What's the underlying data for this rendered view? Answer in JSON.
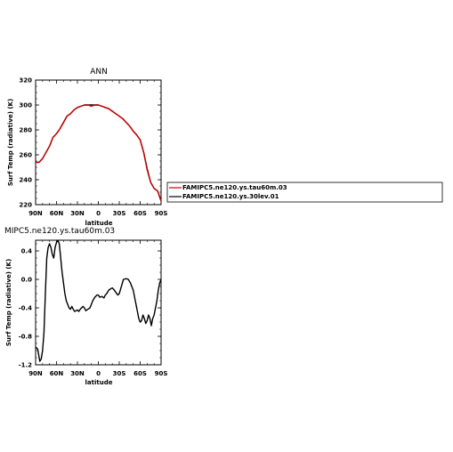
{
  "chart_data": [
    {
      "type": "line",
      "title": "ANN",
      "xlabel": "latitude",
      "ylabel": "Surf Temp (radiative) (K)",
      "x_ticks": [
        "90N",
        "60N",
        "30N",
        "0",
        "30S",
        "60S",
        "90S"
      ],
      "y_ticks": [
        "220",
        "240",
        "260",
        "280",
        "300",
        "320"
      ],
      "xlim": [
        90,
        -90
      ],
      "ylim": [
        220,
        320
      ],
      "series": [
        {
          "name": "FAMIPC5.ne120.ys.tau60m.03",
          "color": "#cc0000",
          "x": [
            90,
            85,
            80,
            75,
            70,
            65,
            60,
            55,
            50,
            45,
            40,
            35,
            30,
            25,
            20,
            15,
            10,
            5,
            0,
            -5,
            -10,
            -15,
            -20,
            -25,
            -30,
            -35,
            -40,
            -45,
            -50,
            -55,
            -60,
            -65,
            -70,
            -75,
            -80,
            -85,
            -90
          ],
          "values": [
            254,
            254,
            257,
            262,
            267,
            274,
            277,
            281,
            286,
            291,
            293,
            296,
            298,
            299,
            300,
            300,
            299,
            300,
            300,
            299,
            298,
            297,
            295,
            293,
            291,
            289,
            286,
            283,
            279,
            276,
            272,
            262,
            248,
            238,
            233,
            231,
            223
          ]
        },
        {
          "name": "FAMIPC5.ne120.ys.30lev.01",
          "color": "#000000",
          "x": [
            90,
            85,
            80,
            75,
            70,
            65,
            60,
            55,
            50,
            45,
            40,
            35,
            30,
            25,
            20,
            15,
            10,
            5,
            0,
            -5,
            -10,
            -15,
            -20,
            -25,
            -30,
            -35,
            -40,
            -45,
            -50,
            -55,
            -60,
            -65,
            -70,
            -75,
            -80,
            -85,
            -90
          ],
          "values": [
            254,
            254,
            257,
            262,
            267,
            274,
            277,
            281,
            286,
            291,
            293,
            296,
            298,
            299,
            300,
            300,
            300,
            300,
            300,
            299,
            298,
            297,
            295,
            293,
            291,
            289,
            286,
            283,
            279,
            276,
            272,
            262,
            249,
            238,
            233,
            231,
            223
          ]
        }
      ],
      "legend": {
        "placement": "right",
        "entries": [
          "FAMIPC5.ne120.ys.tau60m.03",
          "FAMIPC5.ne120.ys.30lev.01"
        ]
      }
    },
    {
      "type": "line",
      "title": "MIPC5.ne120.ys.tau60m.03",
      "xlabel": "latitude",
      "ylabel": "Surf Temp (radiative) (K)",
      "x_ticks": [
        "90N",
        "60N",
        "30N",
        "0",
        "30S",
        "60S",
        "90S"
      ],
      "y_ticks": [
        "-1.2",
        "-0.8",
        "-0.4",
        "0.0",
        "0.4"
      ],
      "xlim": [
        90,
        -90
      ],
      "ylim": [
        -1.2,
        0.55
      ],
      "series": [
        {
          "name": "",
          "color": "#000000",
          "x": [
            90,
            87,
            84,
            82,
            80,
            78,
            76,
            74,
            72,
            70,
            68,
            66,
            64,
            62,
            60,
            58,
            56,
            54,
            52,
            50,
            48,
            46,
            44,
            42,
            40,
            38,
            36,
            34,
            32,
            30,
            28,
            26,
            24,
            22,
            20,
            18,
            15,
            12,
            10,
            8,
            5,
            2,
            0,
            -2,
            -5,
            -8,
            -10,
            -12,
            -15,
            -18,
            -20,
            -22,
            -25,
            -28,
            -30,
            -33,
            -36,
            -40,
            -43,
            -46,
            -50,
            -53,
            -56,
            -58,
            -60,
            -62,
            -64,
            -66,
            -68,
            -70,
            -72,
            -74,
            -76,
            -78,
            -80,
            -82,
            -84,
            -86,
            -88,
            -90
          ],
          "values": [
            -0.95,
            -0.98,
            -1.15,
            -1.12,
            -1.0,
            -0.75,
            -0.2,
            0.3,
            0.45,
            0.5,
            0.45,
            0.35,
            0.3,
            0.45,
            0.52,
            0.55,
            0.5,
            0.3,
            0.1,
            -0.05,
            -0.2,
            -0.3,
            -0.35,
            -0.4,
            -0.42,
            -0.38,
            -0.42,
            -0.45,
            -0.44,
            -0.43,
            -0.45,
            -0.42,
            -0.4,
            -0.38,
            -0.4,
            -0.44,
            -0.42,
            -0.4,
            -0.35,
            -0.3,
            -0.25,
            -0.22,
            -0.22,
            -0.25,
            -0.24,
            -0.26,
            -0.22,
            -0.2,
            -0.15,
            -0.13,
            -0.12,
            -0.14,
            -0.18,
            -0.22,
            -0.2,
            -0.1,
            0.0,
            0.01,
            0.0,
            -0.05,
            -0.15,
            -0.3,
            -0.45,
            -0.55,
            -0.6,
            -0.58,
            -0.5,
            -0.55,
            -0.62,
            -0.58,
            -0.5,
            -0.55,
            -0.65,
            -0.55,
            -0.5,
            -0.4,
            -0.3,
            -0.15,
            -0.05,
            0.0
          ]
        }
      ]
    }
  ]
}
